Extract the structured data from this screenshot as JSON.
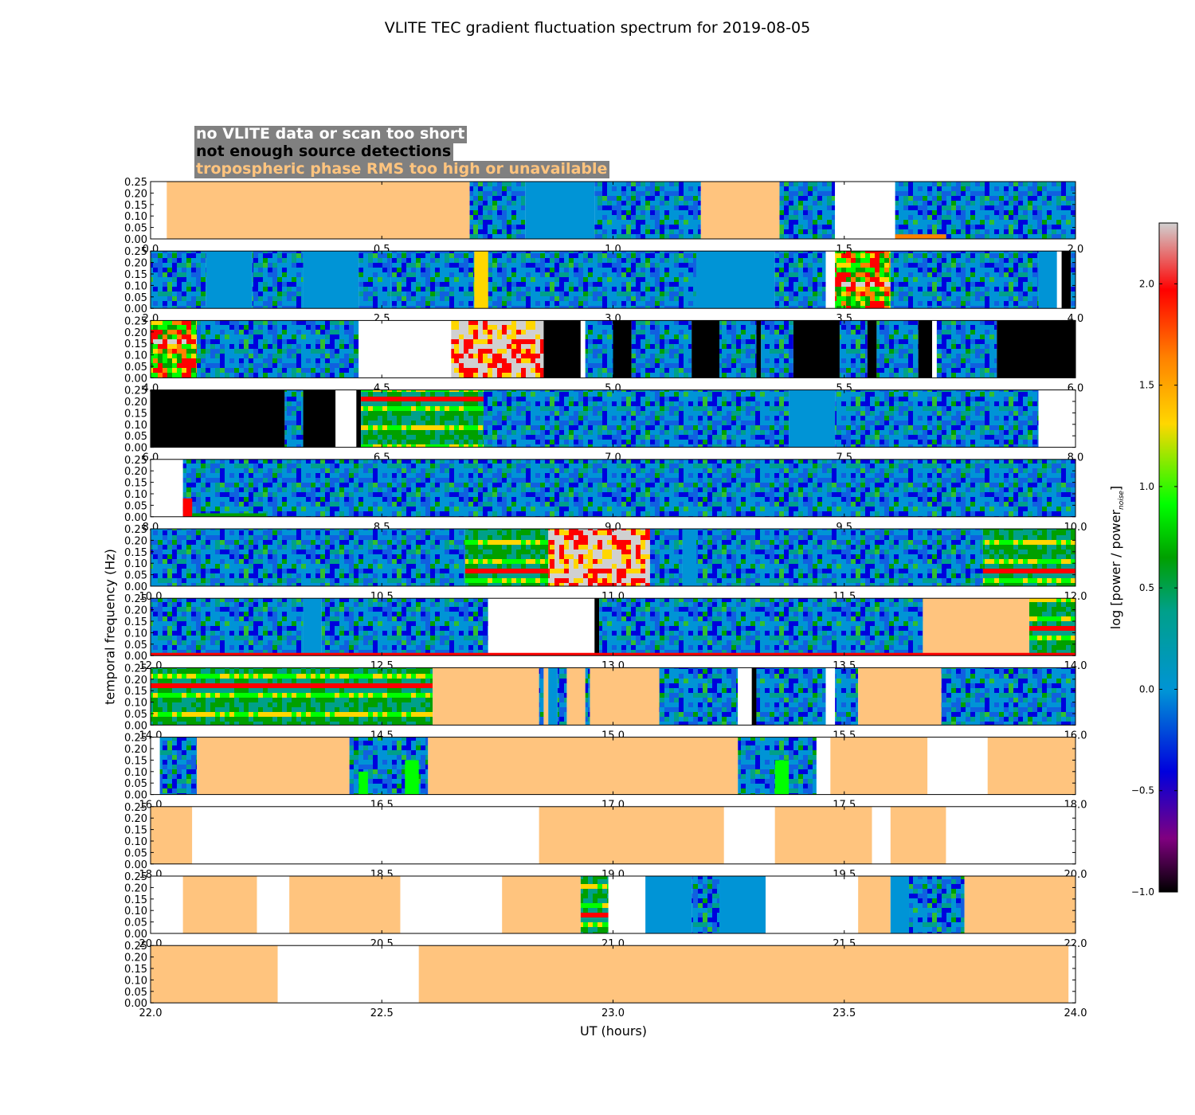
{
  "chart_data": {
    "type": "heatmap",
    "title": "VLITE TEC gradient fluctuation spectrum for 2019-08-05",
    "xlabel": "UT (hours)",
    "ylabel": "temporal frequency (Hz)",
    "ylim": [
      0,
      0.25
    ],
    "yticks": [
      "0.00",
      "0.05",
      "0.10",
      "0.15",
      "0.20",
      "0.25"
    ],
    "colorbar": {
      "label_prefix": "log [power / power",
      "label_sub": "noise",
      "label_suffix": "]",
      "range": [
        -1.0,
        2.3
      ],
      "ticks": [
        "−1.0",
        "−0.5",
        "0.0",
        "0.5",
        "1.0",
        "1.5",
        "2.0"
      ],
      "colors": {
        "black": "#000000",
        "purple": "#800080",
        "blue": "#0000dd",
        "light_blue": "#0094d6",
        "green": "#00a000",
        "bright_green": "#00ff00",
        "yellow": "#ffd700",
        "orange": "#ff8000",
        "red": "#ff0000",
        "gray": "#d0d0d0"
      }
    },
    "legend": [
      {
        "label": "no VLITE data or scan too short",
        "color": "#ffffff"
      },
      {
        "label": "not enough source detections",
        "color": "#000000"
      },
      {
        "label": "tropospheric phase RMS too high or unavailable",
        "color": "#ffc47e"
      }
    ],
    "panels": [
      {
        "range": [
          0,
          2
        ],
        "xticks": [
          "0.0",
          "0.5",
          "1.0",
          "1.5",
          "2.0"
        ],
        "segments": [
          [
            0,
            0.035,
            "none"
          ],
          [
            0.035,
            0.69,
            "trop"
          ],
          [
            0.69,
            0.81,
            "spec"
          ],
          [
            0.81,
            0.96,
            "flat"
          ],
          [
            0.96,
            1.19,
            "spec"
          ],
          [
            1.19,
            1.36,
            "trop"
          ],
          [
            1.36,
            1.48,
            "spec"
          ],
          [
            1.48,
            1.61,
            "none"
          ],
          [
            1.61,
            2,
            "spec"
          ]
        ],
        "hot": [
          [
            1.61,
            1.72,
            0,
            0.02,
            "orange"
          ]
        ]
      },
      {
        "range": [
          2,
          4
        ],
        "xticks": [
          "2.0",
          "2.5",
          "3.0",
          "3.5",
          "4.0"
        ],
        "segments": [
          [
            2,
            2.12,
            "spec"
          ],
          [
            2.12,
            2.22,
            "flat"
          ],
          [
            2.22,
            2.33,
            "spec"
          ],
          [
            2.33,
            2.45,
            "flat"
          ],
          [
            2.45,
            2.52,
            "spec"
          ],
          [
            2.52,
            2.7,
            "spec"
          ],
          [
            2.7,
            2.95,
            "spec"
          ],
          [
            2.95,
            3.18,
            "spec"
          ],
          [
            3.18,
            3.35,
            "flat"
          ],
          [
            3.35,
            3.46,
            "spec"
          ],
          [
            3.46,
            3.48,
            "none"
          ],
          [
            3.48,
            3.6,
            "hot"
          ],
          [
            3.6,
            3.92,
            "spec"
          ],
          [
            3.92,
            3.96,
            "flat"
          ],
          [
            3.96,
            3.97,
            "none"
          ],
          [
            3.97,
            3.99,
            "bad"
          ],
          [
            3.99,
            4,
            "spec"
          ]
        ],
        "hot": [
          [
            2.7,
            2.73,
            0,
            0.25,
            "yellow"
          ]
        ]
      },
      {
        "range": [
          4,
          6
        ],
        "xticks": [
          "4.0",
          "4.5",
          "5.0",
          "5.5",
          "6.0"
        ],
        "segments": [
          [
            4,
            4.1,
            "hot"
          ],
          [
            4.1,
            4.45,
            "spec"
          ],
          [
            4.45,
            4.65,
            "none"
          ],
          [
            4.65,
            4.85,
            "hotgray"
          ],
          [
            4.85,
            4.93,
            "bad"
          ],
          [
            4.93,
            4.94,
            "none"
          ],
          [
            4.94,
            5.0,
            "spec"
          ],
          [
            5.0,
            5.04,
            "bad"
          ],
          [
            5.04,
            5.17,
            "spec"
          ],
          [
            5.17,
            5.23,
            "bad"
          ],
          [
            5.23,
            5.31,
            "spec"
          ],
          [
            5.31,
            5.32,
            "bad"
          ],
          [
            5.32,
            5.39,
            "spec"
          ],
          [
            5.39,
            5.49,
            "bad"
          ],
          [
            5.49,
            5.55,
            "spec"
          ],
          [
            5.55,
            5.57,
            "bad"
          ],
          [
            5.57,
            5.66,
            "spec"
          ],
          [
            5.66,
            5.69,
            "bad"
          ],
          [
            5.69,
            5.7,
            "none"
          ],
          [
            5.7,
            5.83,
            "spec"
          ],
          [
            5.83,
            6,
            "bad"
          ]
        ],
        "hot": []
      },
      {
        "range": [
          6,
          8
        ],
        "xticks": [
          "6.0",
          "6.5",
          "7.0",
          "7.5",
          "8.0"
        ],
        "segments": [
          [
            6,
            6.29,
            "bad"
          ],
          [
            6.29,
            6.33,
            "spec"
          ],
          [
            6.33,
            6.4,
            "bad"
          ],
          [
            6.4,
            6.445,
            "none"
          ],
          [
            6.445,
            6.455,
            "bad"
          ],
          [
            6.455,
            6.72,
            "hotband"
          ],
          [
            6.72,
            7.38,
            "spec"
          ],
          [
            7.38,
            7.48,
            "flat"
          ],
          [
            7.48,
            7.92,
            "spec"
          ],
          [
            7.92,
            8,
            "none"
          ]
        ],
        "hot": []
      },
      {
        "range": [
          8,
          10
        ],
        "xticks": [
          "8.0",
          "8.5",
          "9.0",
          "9.5",
          "10.0"
        ],
        "segments": [
          [
            8,
            8.07,
            "none"
          ],
          [
            8.07,
            10,
            "spec"
          ]
        ],
        "hot": [
          [
            8.07,
            8.09,
            0,
            0.08,
            "red"
          ],
          [
            8.09,
            8.25,
            0,
            0.015,
            "green"
          ]
        ]
      },
      {
        "range": [
          10,
          12
        ],
        "xticks": [
          "10.0",
          "10.5",
          "11.0",
          "11.5",
          "12.0"
        ],
        "segments": [
          [
            10,
            10.68,
            "spec"
          ],
          [
            10.68,
            10.86,
            "hotband"
          ],
          [
            10.86,
            11.08,
            "hotgray"
          ],
          [
            11.08,
            11.15,
            "spec"
          ],
          [
            11.15,
            11.18,
            "flat"
          ],
          [
            11.18,
            11.8,
            "spec"
          ],
          [
            11.8,
            12,
            "hotband"
          ]
        ],
        "hot": []
      },
      {
        "range": [
          12,
          14
        ],
        "xticks": [
          "12.0",
          "12.5",
          "13.0",
          "13.5",
          "14.0"
        ],
        "segments": [
          [
            12,
            12.33,
            "spec"
          ],
          [
            12.33,
            12.37,
            "flat"
          ],
          [
            12.37,
            12.73,
            "spec"
          ],
          [
            12.73,
            12.96,
            "none"
          ],
          [
            12.96,
            12.97,
            "bad"
          ],
          [
            12.97,
            13.67,
            "spec"
          ],
          [
            13.67,
            13.9,
            "trop"
          ],
          [
            13.9,
            14,
            "hotband"
          ]
        ],
        "hot": [
          [
            12,
            14,
            0,
            0.012,
            "red"
          ]
        ]
      },
      {
        "range": [
          14,
          16
        ],
        "xticks": [
          "14.0",
          "14.5",
          "15.0",
          "15.5",
          "16.0"
        ],
        "segments": [
          [
            14,
            14.61,
            "hotband"
          ],
          [
            14.61,
            14.84,
            "trop"
          ],
          [
            14.84,
            14.85,
            "spec"
          ],
          [
            14.85,
            14.86,
            "trop"
          ],
          [
            14.86,
            14.88,
            "flat"
          ],
          [
            14.88,
            14.9,
            "spec"
          ],
          [
            14.9,
            14.94,
            "trop"
          ],
          [
            14.94,
            14.95,
            "spec"
          ],
          [
            14.95,
            15.1,
            "trop"
          ],
          [
            15.1,
            15.27,
            "spec"
          ],
          [
            15.27,
            15.3,
            "none"
          ],
          [
            15.3,
            15.31,
            "bad"
          ],
          [
            15.31,
            15.46,
            "spec"
          ],
          [
            15.46,
            15.48,
            "none"
          ],
          [
            15.48,
            15.53,
            "spec"
          ],
          [
            15.53,
            15.71,
            "trop"
          ],
          [
            15.71,
            16,
            "spec"
          ]
        ],
        "hot": []
      },
      {
        "range": [
          16,
          18
        ],
        "xticks": [
          "16.0",
          "16.5",
          "17.0",
          "17.5",
          "18.0"
        ],
        "segments": [
          [
            16,
            16.02,
            "none"
          ],
          [
            16.02,
            16.1,
            "spec"
          ],
          [
            16.1,
            16.43,
            "trop"
          ],
          [
            16.43,
            16.6,
            "spec"
          ],
          [
            16.6,
            17.27,
            "trop"
          ],
          [
            17.27,
            17.44,
            "spec"
          ],
          [
            17.44,
            17.47,
            "none"
          ],
          [
            17.47,
            17.68,
            "trop"
          ],
          [
            17.68,
            17.81,
            "none"
          ],
          [
            17.81,
            18,
            "trop"
          ]
        ],
        "hot": [
          [
            16.45,
            16.47,
            0,
            0.1,
            "bright_green"
          ],
          [
            16.55,
            16.58,
            0,
            0.15,
            "bright_green"
          ],
          [
            17.35,
            17.38,
            0,
            0.15,
            "bright_green"
          ]
        ]
      },
      {
        "range": [
          18,
          20
        ],
        "xticks": [
          "18.0",
          "18.5",
          "19.0",
          "19.5",
          "20.0"
        ],
        "segments": [
          [
            18,
            18.09,
            "trop"
          ],
          [
            18.09,
            18.84,
            "none"
          ],
          [
            18.84,
            19.24,
            "trop"
          ],
          [
            19.24,
            19.35,
            "none"
          ],
          [
            19.35,
            19.56,
            "trop"
          ],
          [
            19.56,
            19.6,
            "none"
          ],
          [
            19.6,
            19.72,
            "trop"
          ],
          [
            19.72,
            20,
            "none"
          ]
        ],
        "hot": []
      },
      {
        "range": [
          20,
          22
        ],
        "xticks": [
          "20.0",
          "20.5",
          "21.0",
          "21.5",
          "22.0"
        ],
        "segments": [
          [
            20,
            20.07,
            "none"
          ],
          [
            20.07,
            20.23,
            "trop"
          ],
          [
            20.23,
            20.3,
            "none"
          ],
          [
            20.3,
            20.54,
            "trop"
          ],
          [
            20.54,
            20.76,
            "none"
          ],
          [
            20.76,
            20.93,
            "trop"
          ],
          [
            20.93,
            20.99,
            "hotband"
          ],
          [
            20.99,
            21.07,
            "none"
          ],
          [
            21.07,
            21.17,
            "flat"
          ],
          [
            21.17,
            21.23,
            "spec"
          ],
          [
            21.23,
            21.33,
            "flat"
          ],
          [
            21.33,
            21.53,
            "none"
          ],
          [
            21.53,
            21.6,
            "trop"
          ],
          [
            21.6,
            21.64,
            "flat"
          ],
          [
            21.64,
            21.76,
            "spec"
          ],
          [
            21.76,
            22,
            "trop"
          ]
        ],
        "hot": []
      },
      {
        "range": [
          22,
          24
        ],
        "xticks": [
          "22.0",
          "22.5",
          "23.0",
          "23.5",
          "24.0"
        ],
        "segments": [
          [
            22,
            22.275,
            "trop"
          ],
          [
            22.275,
            22.58,
            "none"
          ],
          [
            22.58,
            23.985,
            "trop"
          ],
          [
            23.985,
            24,
            "none"
          ]
        ],
        "hot": []
      }
    ]
  }
}
